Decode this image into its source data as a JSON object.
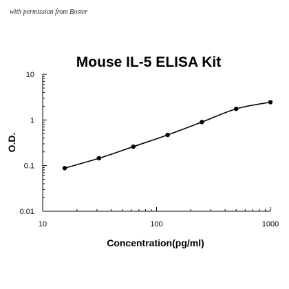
{
  "watermark": "with permission from Boster",
  "chart_data": {
    "type": "scatter",
    "title": "Mouse IL-5 ELISA Kit",
    "xlabel": "Concentration(pg/ml)",
    "ylabel": "O.D.",
    "x_scale": "log",
    "y_scale": "log",
    "xlim": [
      10,
      1000
    ],
    "ylim": [
      0.01,
      10
    ],
    "x_ticks": [
      10,
      100,
      1000
    ],
    "x_tick_labels": [
      "10",
      "100",
      "1000"
    ],
    "y_ticks": [
      0.01,
      0.1,
      1,
      10
    ],
    "y_tick_labels": [
      "0.01",
      "0.1",
      "1",
      "10"
    ],
    "grid": false,
    "legend": "none",
    "series": [
      {
        "points": [
          {
            "x": 15.6,
            "y": 0.088
          },
          {
            "x": 31.25,
            "y": 0.145
          },
          {
            "x": 62.5,
            "y": 0.26
          },
          {
            "x": 125,
            "y": 0.47
          },
          {
            "x": 250,
            "y": 0.9
          },
          {
            "x": 500,
            "y": 1.75
          },
          {
            "x": 1000,
            "y": 2.45
          }
        ],
        "fit": "smooth curve",
        "color": "#000000"
      }
    ]
  }
}
